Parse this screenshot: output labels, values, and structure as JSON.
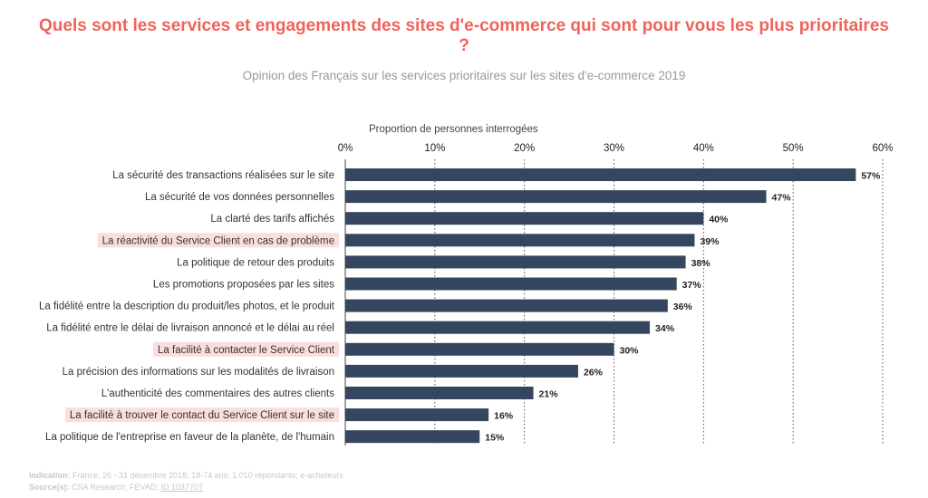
{
  "title": "Quels sont les services et engagements des sites d'e-commerce qui sont pour vous les plus prioritaires ?",
  "subtitle": "Opinion des Français sur les services prioritaires sur les sites d'e-commerce 2019",
  "chart_data": {
    "type": "bar",
    "orientation": "horizontal",
    "xlabel": "Proportion de personnes interrogées",
    "xlim": [
      0,
      60
    ],
    "xticks": [
      "0%",
      "10%",
      "20%",
      "30%",
      "40%",
      "50%",
      "60%"
    ],
    "grid": "vertical dotted",
    "bar_color": "#35475f",
    "highlight_color": "#f9dedd",
    "categories": [
      "La sécurité des transactions réalisées sur le site",
      "La sécurité de vos données personnelles",
      "La clarté des tarifs affichés",
      "La réactivité du Service Client en cas de problème",
      "La politique de retour des produits",
      "Les promotions proposées par les sites",
      "La fidélité entre la description du produit/les photos, et le produit",
      "La fidélité entre le délai de livraison annoncé et le délai au réel",
      "La facilité à contacter le Service Client",
      "La précision des informations sur les modalités de livraison",
      "L'authenticité des commentaires des autres clients",
      "La facilité à trouver le contact du Service Client sur le site",
      "La politique de l'entreprise en faveur de la planète, de l'humain"
    ],
    "values": [
      57,
      47,
      40,
      39,
      38,
      37,
      36,
      34,
      30,
      26,
      21,
      16,
      15
    ],
    "value_labels": [
      "57%",
      "47%",
      "40%",
      "39%",
      "38%",
      "37%",
      "36%",
      "34%",
      "30%",
      "26%",
      "21%",
      "16%",
      "15%"
    ],
    "highlighted": [
      false,
      false,
      false,
      true,
      false,
      false,
      false,
      false,
      true,
      false,
      false,
      true,
      false
    ]
  },
  "footer": {
    "indication_label": "Indication:",
    "indication_text": "France; 26 - 31 décembre 2018; 18-74 ans; 1.010 répondants; e-acheteurs",
    "source_label": "Source(s):",
    "source_text": "CSA Research; FEVAD;",
    "source_id": "ID 1037707"
  }
}
